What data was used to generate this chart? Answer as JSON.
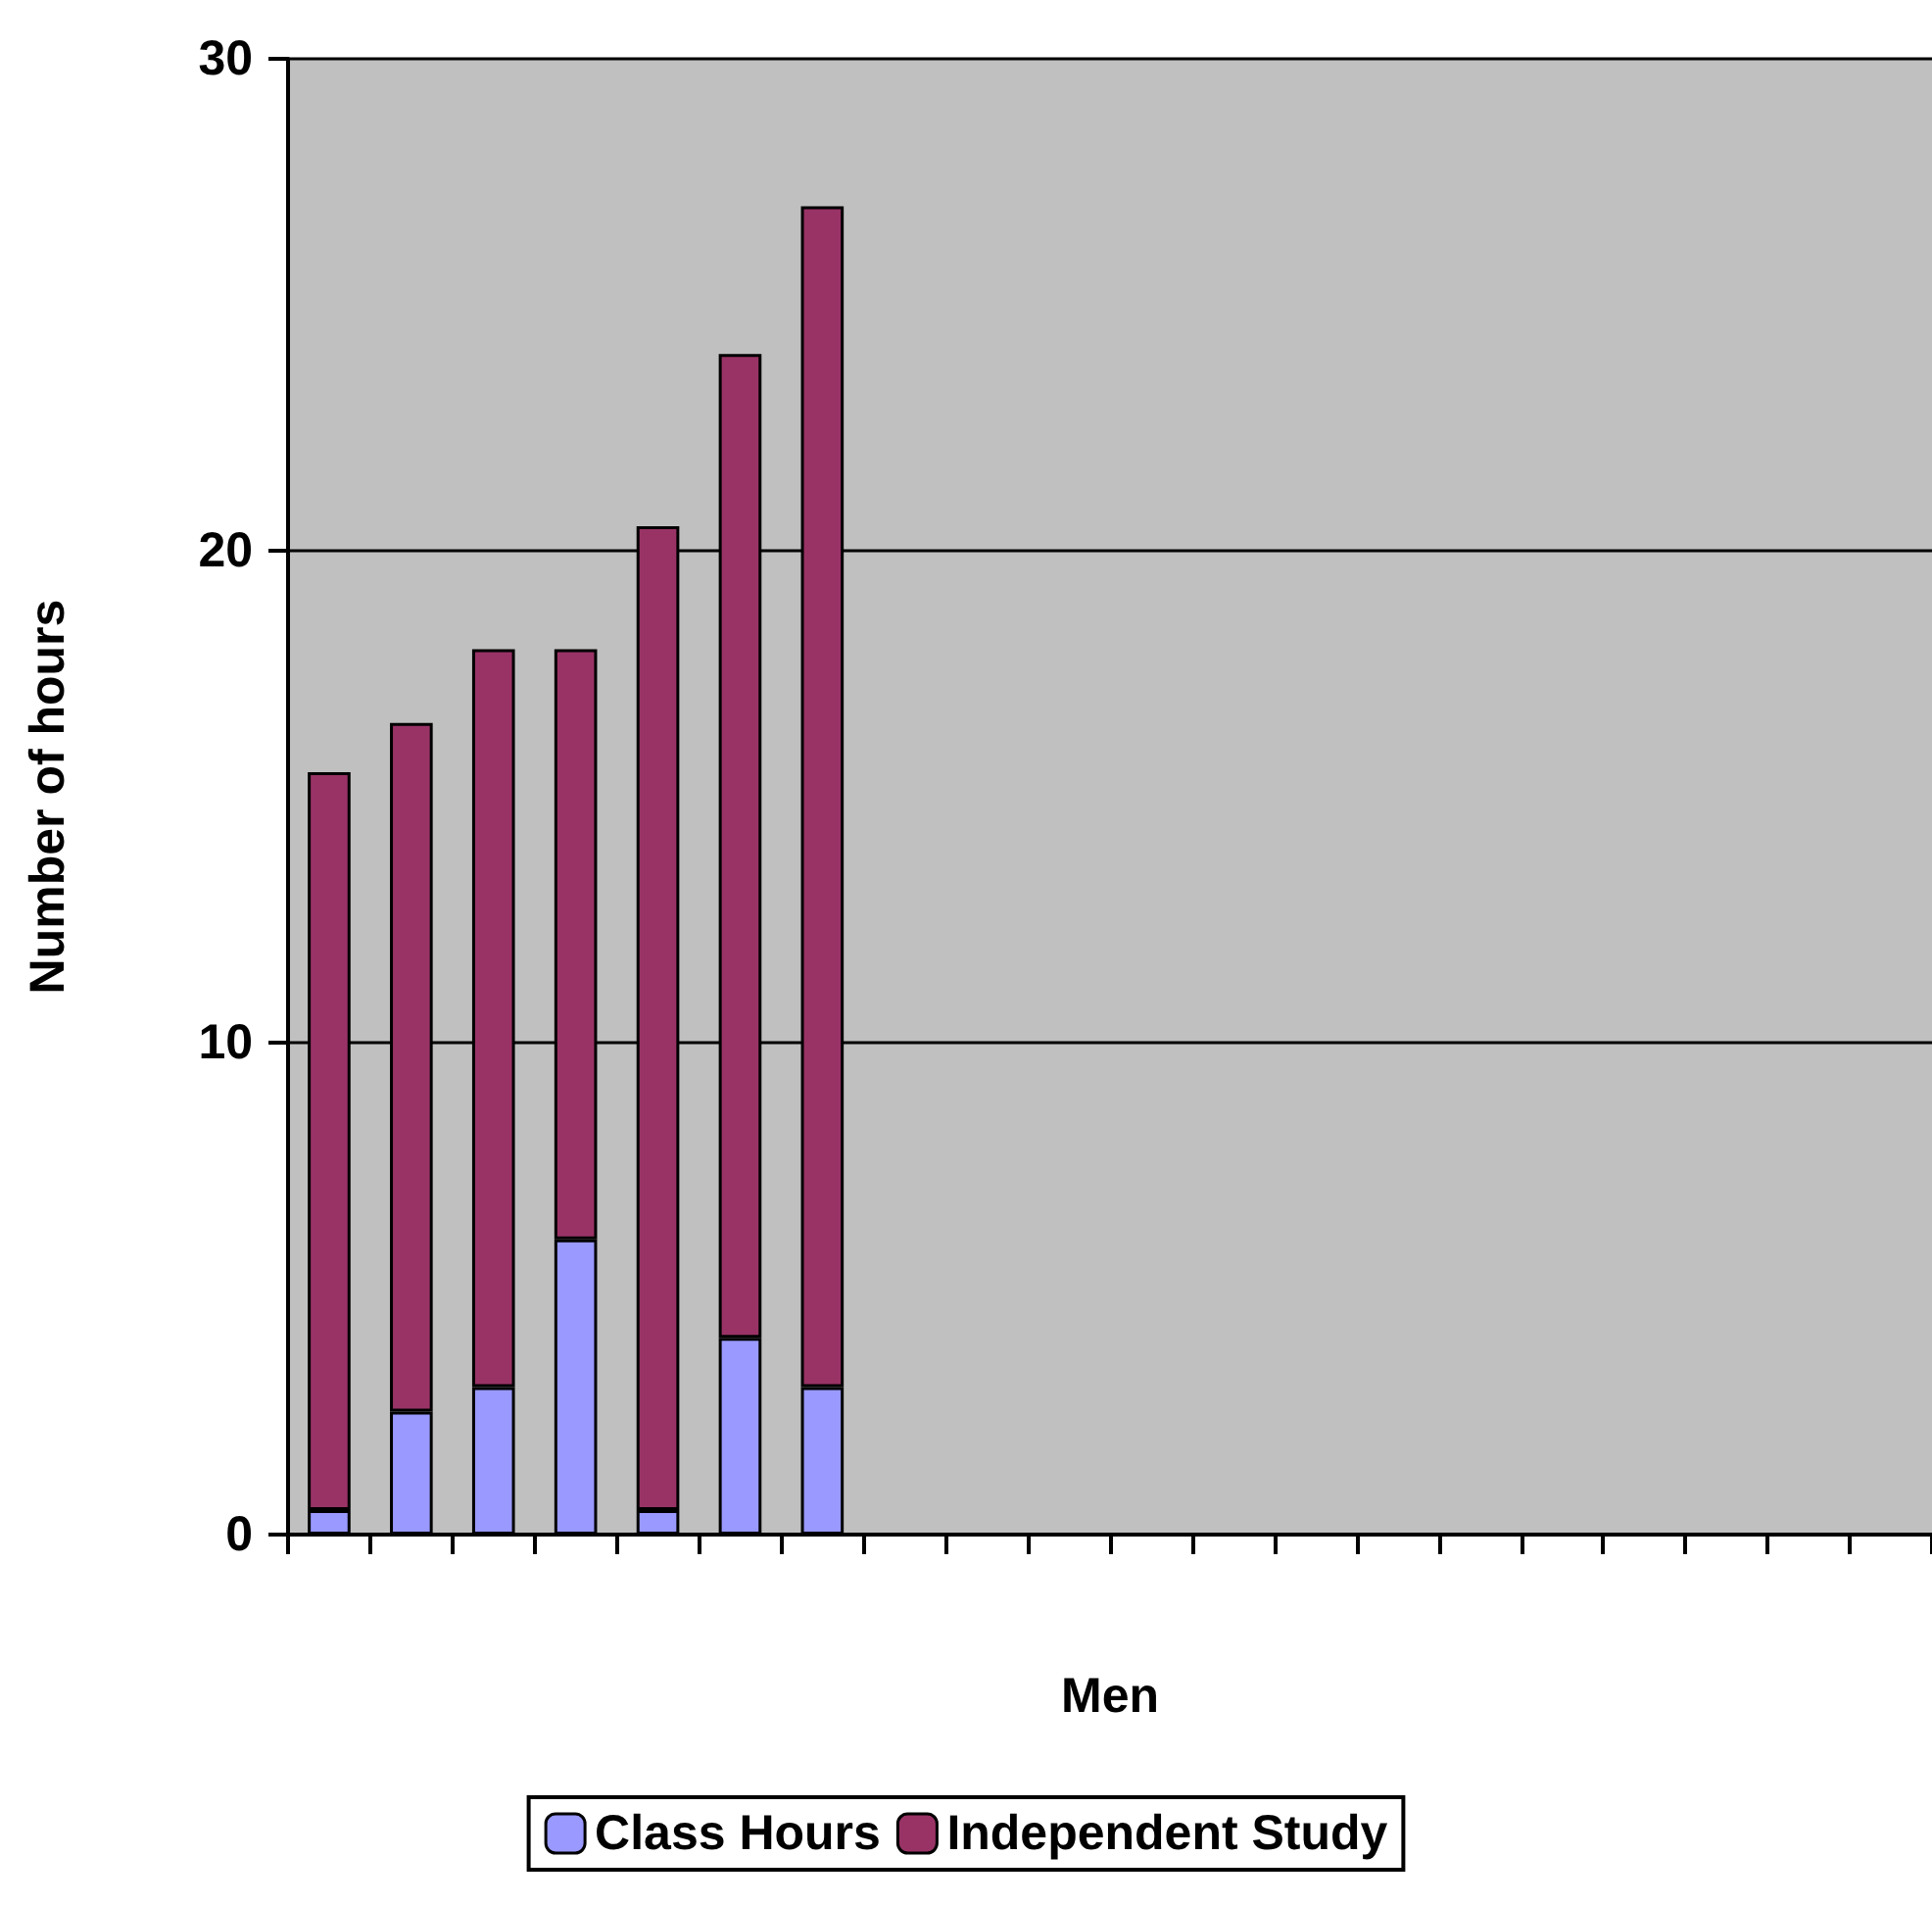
{
  "chart_data": {
    "type": "bar",
    "stacked": true,
    "xlabel": "Men",
    "ylabel": "Number of hours",
    "categories": [
      null,
      null,
      null,
      null,
      null,
      null,
      null,
      null,
      null,
      null,
      null,
      null,
      null,
      null,
      null,
      null,
      null,
      null,
      null,
      null
    ],
    "series": [
      {
        "name": "Class Hours",
        "color": "#9999ff",
        "values": [
          0.5,
          2.5,
          3,
          6,
          0.5,
          4,
          3,
          null,
          null,
          null,
          null,
          null,
          null,
          null,
          null,
          null,
          null,
          null,
          null,
          null
        ]
      },
      {
        "name": "Independent Study",
        "color": "#993366",
        "values": [
          15,
          14,
          15,
          12,
          20,
          20,
          24,
          null,
          null,
          null,
          null,
          null,
          null,
          null,
          null,
          null,
          null,
          null,
          null,
          null
        ]
      }
    ],
    "ylim": [
      0,
      30
    ],
    "yticks": [
      0,
      10,
      20,
      30
    ],
    "grid": "y",
    "legend": "bottom"
  }
}
